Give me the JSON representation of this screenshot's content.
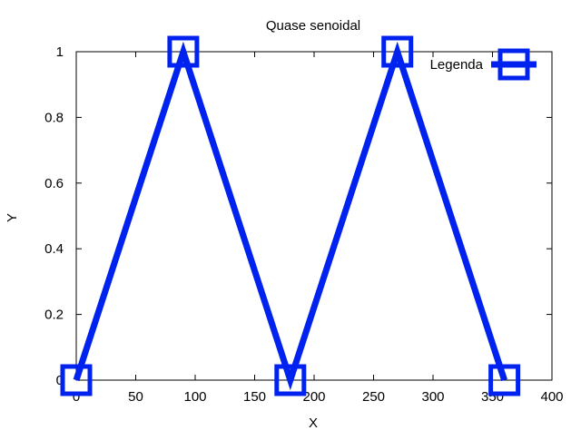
{
  "chart_data": {
    "type": "line",
    "title": "Quase senoidal",
    "xlabel": "X",
    "ylabel": "Y",
    "xlim": [
      0,
      400
    ],
    "ylim": [
      0,
      1
    ],
    "xticks": [
      0,
      50,
      100,
      150,
      200,
      250,
      300,
      350,
      400
    ],
    "yticks": [
      0,
      0.2,
      0.4,
      0.6,
      0.8,
      1
    ],
    "grid": false,
    "legend_position": "top-right",
    "series": [
      {
        "name": "Legenda",
        "color": "#0022ee",
        "marker": "square",
        "x": [
          0,
          90,
          180,
          270,
          360
        ],
        "y": [
          0,
          1,
          0,
          1,
          0
        ]
      }
    ]
  }
}
